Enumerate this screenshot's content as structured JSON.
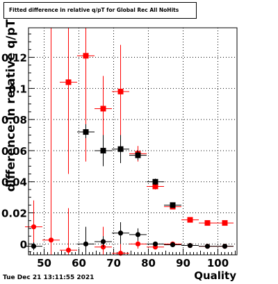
{
  "title": "Fitted difference in relative q/pT for Global Rec All NoHits",
  "timestamp": "Tue Dec 21 13:11:55 2021",
  "chart_data": {
    "type": "scatter",
    "xlabel": "Quality",
    "ylabel": "difference in relative q/pT",
    "xlim": [
      45.5,
      105.5
    ],
    "ylim": [
      -0.007,
      0.139
    ],
    "xticks": [
      50,
      60,
      70,
      80,
      90,
      100
    ],
    "yticks": [
      0,
      0.02,
      0.04,
      0.06,
      0.08,
      0.1,
      0.12
    ],
    "xtick_labels": [
      "50",
      "60",
      "70",
      "80",
      "90",
      "100"
    ],
    "ytick_labels": [
      "0",
      "0.02",
      "0.04",
      "0.06",
      "0.08",
      "0.1",
      "0.12"
    ],
    "grid": true,
    "series": [
      {
        "marker": "circle",
        "color_key": "red",
        "points": [
          {
            "x": 47,
            "y": 0.011,
            "ylo": 0.0,
            "yhi": 0.028
          },
          {
            "x": 52,
            "y": 0.0025,
            "ylo": -0.007,
            "yhi": 0.139
          },
          {
            "x": 57,
            "y": -0.004,
            "ylo": -0.007,
            "yhi": 0.023
          },
          {
            "x": 67,
            "y": -0.002,
            "ylo": -0.007,
            "yhi": 0.011
          },
          {
            "x": 72,
            "y": -0.006,
            "ylo": -0.007,
            "yhi": 0.0
          },
          {
            "x": 77,
            "y": 0.0,
            "ylo": -0.003,
            "yhi": 0.003
          },
          {
            "x": 82,
            "y": -0.002,
            "ylo": -0.003,
            "yhi": -0.001
          },
          {
            "x": 87,
            "y": 0.0,
            "ylo": -0.001,
            "yhi": 0.001
          },
          {
            "x": 92,
            "y": -0.001,
            "ylo": -0.0015,
            "yhi": -0.0005
          },
          {
            "x": 97,
            "y": -0.0015,
            "ylo": -0.002,
            "yhi": -0.001
          },
          {
            "x": 102,
            "y": -0.0015,
            "ylo": -0.002,
            "yhi": -0.001
          }
        ]
      },
      {
        "marker": "square",
        "color_key": "red",
        "points": [
          {
            "x": 57,
            "y": 0.104,
            "ylo": 0.045,
            "yhi": 0.139
          },
          {
            "x": 62,
            "y": 0.121,
            "ylo": 0.053,
            "yhi": 0.139
          },
          {
            "x": 67,
            "y": 0.087,
            "ylo": 0.065,
            "yhi": 0.108
          },
          {
            "x": 72,
            "y": 0.098,
            "ylo": 0.069,
            "yhi": 0.128
          },
          {
            "x": 77,
            "y": 0.058,
            "ylo": 0.053,
            "yhi": 0.063
          },
          {
            "x": 82,
            "y": 0.037,
            "ylo": 0.035,
            "yhi": 0.039
          },
          {
            "x": 87,
            "y": 0.024,
            "ylo": 0.023,
            "yhi": 0.025
          },
          {
            "x": 92,
            "y": 0.0155,
            "ylo": 0.015,
            "yhi": 0.016
          },
          {
            "x": 97,
            "y": 0.0135,
            "ylo": 0.013,
            "yhi": 0.014
          },
          {
            "x": 102,
            "y": 0.0135,
            "ylo": 0.013,
            "yhi": 0.014
          }
        ]
      },
      {
        "marker": "circle",
        "color_key": "black",
        "points": [
          {
            "x": 47,
            "y": -0.0015,
            "ylo": -0.004,
            "yhi": 0.001
          },
          {
            "x": 62,
            "y": 0.0,
            "ylo": -0.006,
            "yhi": 0.011
          },
          {
            "x": 67,
            "y": 0.0015,
            "ylo": -0.002,
            "yhi": 0.005
          },
          {
            "x": 72,
            "y": 0.007,
            "ylo": 0.0,
            "yhi": 0.014
          },
          {
            "x": 77,
            "y": 0.006,
            "ylo": 0.002,
            "yhi": 0.01
          },
          {
            "x": 82,
            "y": 0.0,
            "ylo": -0.001,
            "yhi": 0.001
          },
          {
            "x": 87,
            "y": -0.0005,
            "ylo": -0.001,
            "yhi": 0.0
          },
          {
            "x": 92,
            "y": -0.001,
            "ylo": -0.0015,
            "yhi": -0.0005
          },
          {
            "x": 97,
            "y": -0.0015,
            "ylo": -0.002,
            "yhi": -0.001
          },
          {
            "x": 102,
            "y": -0.0015,
            "ylo": -0.002,
            "yhi": -0.001
          }
        ]
      },
      {
        "marker": "square",
        "color_key": "black",
        "points": [
          {
            "x": 62,
            "y": 0.072,
            "ylo": 0.068,
            "yhi": 0.077
          },
          {
            "x": 67,
            "y": 0.06,
            "ylo": 0.05,
            "yhi": 0.07
          },
          {
            "x": 72,
            "y": 0.061,
            "ylo": 0.052,
            "yhi": 0.07
          },
          {
            "x": 77,
            "y": 0.057,
            "ylo": 0.054,
            "yhi": 0.06
          },
          {
            "x": 82,
            "y": 0.04,
            "ylo": 0.038,
            "yhi": 0.042
          },
          {
            "x": 87,
            "y": 0.025,
            "ylo": 0.024,
            "yhi": 0.026
          }
        ]
      }
    ],
    "colors": {
      "red": "#ff0000",
      "black": "#000000",
      "grid": "#000000",
      "frame": "#000000"
    }
  }
}
